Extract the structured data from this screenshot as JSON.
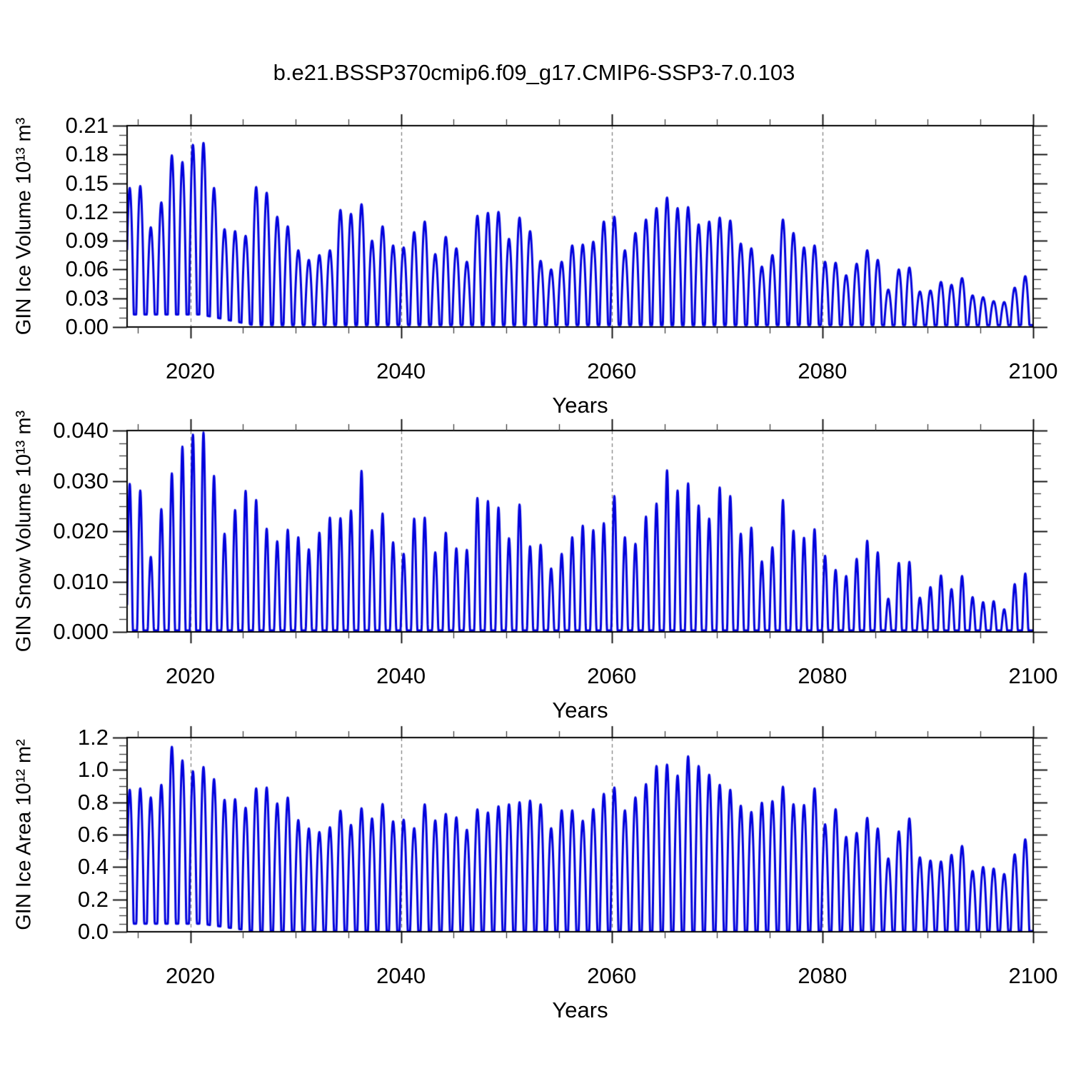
{
  "figure": {
    "title": "b.e21.BSSP370cmip6.f09_g17.CMIP6-SSP3-7.0.103",
    "background_color": "#ffffff",
    "line_color": "#0000dd",
    "grid_color": "#7a7a7a",
    "frame_color": "#000000"
  },
  "chart_data": [
    {
      "type": "line",
      "name": "gin-ice-volume",
      "ylabel": "GIN Ice Volume 10¹³ m³",
      "xlabel": "Years",
      "xlim": [
        2014,
        2100
      ],
      "ylim": [
        0,
        0.21
      ],
      "x_major_ticks": [
        2020,
        2040,
        2060,
        2080,
        2100
      ],
      "x_minor_step": 5,
      "x_grid_dashed": [
        2020,
        2040,
        2060,
        2080
      ],
      "y_major_ticks": [
        0.0,
        0.03,
        0.06,
        0.09,
        0.12,
        0.15,
        0.18,
        0.21
      ],
      "y_tick_labels": [
        "0.00",
        "0.03",
        "0.06",
        "0.09",
        "0.12",
        "0.15",
        "0.18",
        "0.21"
      ],
      "y_minor_step": 0.01,
      "grid": "x-dashed-only",
      "legend": "none",
      "series": {
        "start_year": 2014,
        "annual_peaks": [
          0.145,
          0.147,
          0.104,
          0.13,
          0.179,
          0.172,
          0.19,
          0.192,
          0.145,
          0.102,
          0.1,
          0.095,
          0.146,
          0.14,
          0.115,
          0.105,
          0.08,
          0.07,
          0.075,
          0.08,
          0.122,
          0.118,
          0.128,
          0.09,
          0.105,
          0.085,
          0.083,
          0.099,
          0.11,
          0.076,
          0.094,
          0.082,
          0.068,
          0.116,
          0.119,
          0.12,
          0.092,
          0.114,
          0.1,
          0.069,
          0.06,
          0.068,
          0.085,
          0.086,
          0.089,
          0.11,
          0.115,
          0.08,
          0.098,
          0.112,
          0.124,
          0.135,
          0.124,
          0.125,
          0.107,
          0.11,
          0.114,
          0.111,
          0.087,
          0.082,
          0.063,
          0.075,
          0.112,
          0.098,
          0.083,
          0.085,
          0.068,
          0.067,
          0.054,
          0.066,
          0.08,
          0.07,
          0.039,
          0.06,
          0.062,
          0.037,
          0.038,
          0.047,
          0.044,
          0.051,
          0.033,
          0.031,
          0.027,
          0.026,
          0.041,
          0.053
        ],
        "early_min": 0.013,
        "late_min": 0.002,
        "min_fade_years": [
          2021,
          2026
        ],
        "bump_width": 0.8,
        "bump_power": 1.0
      }
    },
    {
      "type": "line",
      "name": "gin-snow-volume",
      "ylabel": "GIN Snow Volume 10¹³ m³",
      "xlabel": "Years",
      "xlim": [
        2014,
        2100
      ],
      "ylim": [
        0,
        0.04
      ],
      "x_major_ticks": [
        2020,
        2040,
        2060,
        2080,
        2100
      ],
      "x_minor_step": 5,
      "x_grid_dashed": [
        2020,
        2040,
        2060,
        2080
      ],
      "y_major_ticks": [
        0.0,
        0.01,
        0.02,
        0.03,
        0.04
      ],
      "y_tick_labels": [
        "0.000",
        "0.010",
        "0.020",
        "0.030",
        "0.040"
      ],
      "y_minor_step": 0.0025,
      "grid": "x-dashed-only",
      "legend": "none",
      "series": {
        "start_year": 2014,
        "annual_peaks": [
          0.0294,
          0.0281,
          0.0149,
          0.0244,
          0.0315,
          0.0368,
          0.0392,
          0.0396,
          0.031,
          0.0195,
          0.0242,
          0.028,
          0.0262,
          0.0205,
          0.018,
          0.0203,
          0.0188,
          0.0164,
          0.0197,
          0.0227,
          0.0226,
          0.0241,
          0.032,
          0.0202,
          0.0235,
          0.0178,
          0.0155,
          0.0225,
          0.0227,
          0.0158,
          0.0197,
          0.0166,
          0.0163,
          0.0266,
          0.026,
          0.0247,
          0.0186,
          0.0253,
          0.017,
          0.0173,
          0.0126,
          0.0155,
          0.0188,
          0.0211,
          0.0202,
          0.0216,
          0.027,
          0.0188,
          0.0175,
          0.0229,
          0.0255,
          0.0321,
          0.0281,
          0.0295,
          0.0251,
          0.0225,
          0.0287,
          0.027,
          0.0195,
          0.0207,
          0.014,
          0.0168,
          0.0262,
          0.0201,
          0.0187,
          0.0204,
          0.0151,
          0.0123,
          0.0111,
          0.0145,
          0.0181,
          0.0158,
          0.0066,
          0.0137,
          0.0139,
          0.0068,
          0.0089,
          0.0112,
          0.0085,
          0.0111,
          0.0069,
          0.0059,
          0.0061,
          0.0045,
          0.0095,
          0.0116
        ],
        "early_min": 0.0003,
        "late_min": 0.0003,
        "min_fade_years": [
          2021,
          2026
        ],
        "bump_width": 0.6,
        "bump_power": 1.25
      }
    },
    {
      "type": "line",
      "name": "gin-ice-area",
      "ylabel": "GIN Ice Area 10¹² m²",
      "xlabel": "Years",
      "xlim": [
        2014,
        2100
      ],
      "ylim": [
        0,
        1.2
      ],
      "x_major_ticks": [
        2020,
        2040,
        2060,
        2080,
        2100
      ],
      "x_minor_step": 5,
      "x_grid_dashed": [
        2020,
        2040,
        2060,
        2080
      ],
      "y_major_ticks": [
        0.0,
        0.2,
        0.4,
        0.6,
        0.8,
        1.0,
        1.2
      ],
      "y_tick_labels": [
        "0.0",
        "0.2",
        "0.4",
        "0.6",
        "0.8",
        "1.0",
        "1.2"
      ],
      "y_minor_step": 0.05,
      "grid": "x-dashed-only",
      "legend": "none",
      "series": {
        "start_year": 2014,
        "annual_peaks": [
          0.877,
          0.886,
          0.83,
          0.908,
          1.143,
          1.059,
          0.992,
          1.018,
          0.943,
          0.815,
          0.819,
          0.766,
          0.886,
          0.891,
          0.793,
          0.829,
          0.69,
          0.638,
          0.616,
          0.646,
          0.748,
          0.66,
          0.763,
          0.7,
          0.789,
          0.682,
          0.692,
          0.64,
          0.787,
          0.688,
          0.728,
          0.707,
          0.63,
          0.756,
          0.737,
          0.775,
          0.787,
          0.8,
          0.81,
          0.787,
          0.64,
          0.75,
          0.75,
          0.686,
          0.758,
          0.852,
          0.891,
          0.75,
          0.83,
          0.912,
          1.024,
          1.033,
          0.965,
          1.084,
          1.024,
          0.97,
          0.908,
          0.877,
          0.779,
          0.74,
          0.797,
          0.807,
          0.896,
          0.788,
          0.783,
          0.886,
          0.664,
          0.757,
          0.586,
          0.611,
          0.704,
          0.638,
          0.453,
          0.62,
          0.7,
          0.46,
          0.44,
          0.434,
          0.475,
          0.53,
          0.376,
          0.4,
          0.39,
          0.357,
          0.478,
          0.571
        ],
        "early_min": 0.05,
        "late_min": 0.004,
        "min_fade_years": [
          2021,
          2026
        ],
        "bump_width": 0.76,
        "bump_power": 1.0
      }
    }
  ]
}
